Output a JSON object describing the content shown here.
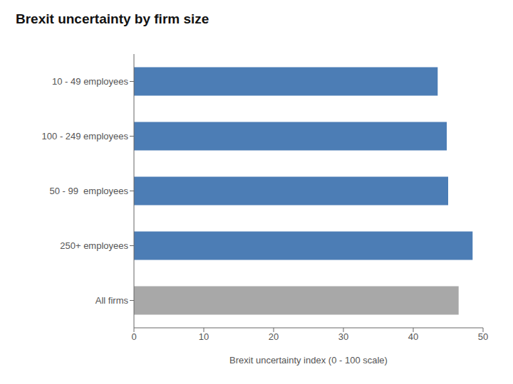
{
  "chart_data": {
    "type": "bar",
    "orientation": "horizontal",
    "title": "Brexit uncertainty by firm size",
    "categories": [
      "10 - 49 employees",
      "100 - 249 employees",
      "50 - 99  employees",
      "250+ employees",
      "All firms"
    ],
    "values": [
      43.5,
      44.8,
      45.0,
      48.5,
      46.5
    ],
    "colors": [
      "#4c7db5",
      "#4c7db5",
      "#4c7db5",
      "#4c7db5",
      "#a8a8a8"
    ],
    "xlim": [
      0,
      50
    ],
    "xticks": [
      0,
      10,
      20,
      30,
      40,
      50
    ],
    "xlabel": "Brexit uncertainty index (0 - 100 scale)",
    "grid": false
  }
}
